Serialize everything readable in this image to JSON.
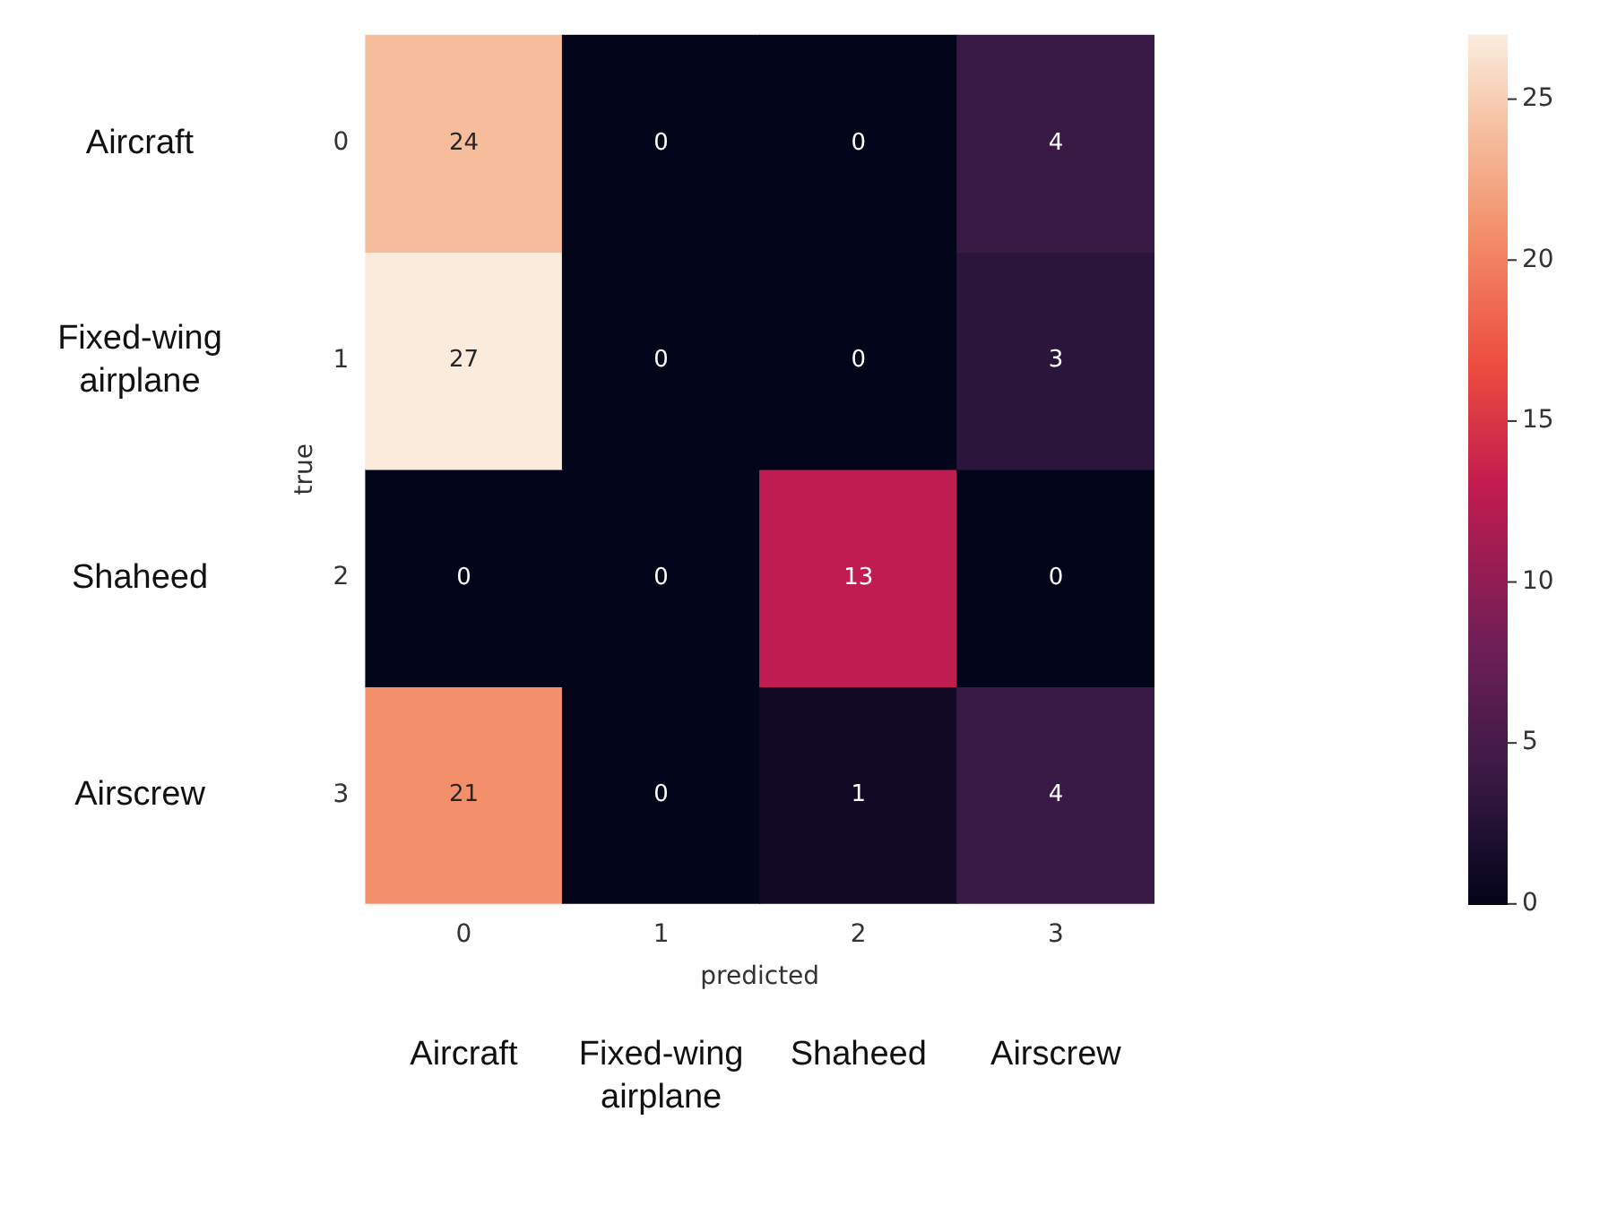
{
  "chart_data": {
    "type": "heatmap",
    "xlabel": "predicted",
    "ylabel": "true",
    "categories": [
      "0",
      "1",
      "2",
      "3"
    ],
    "y_categories": [
      "0",
      "1",
      "2",
      "3"
    ],
    "y2_categories": [
      "Aircraft",
      "Fixed-wing airplane",
      "Shaheed",
      "Airscrew"
    ],
    "cells": [
      [
        24,
        0,
        0,
        4
      ],
      [
        27,
        0,
        0,
        3
      ],
      [
        0,
        0,
        13,
        0
      ],
      [
        21,
        0,
        1,
        4
      ]
    ],
    "clim": [
      0,
      27
    ],
    "cticks": [
      0,
      5,
      10,
      15,
      20,
      25
    ],
    "data_labels": true,
    "annotations": [
      "Aircraft",
      "Fixed-wing airplane",
      "Shaheed",
      "Airscrew"
    ]
  }
}
